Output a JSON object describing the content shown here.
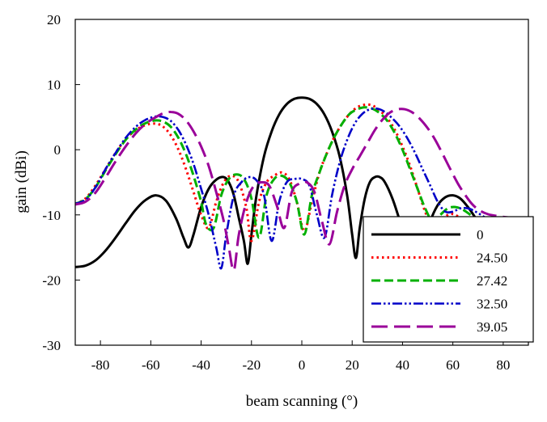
{
  "chart_data": {
    "type": "line",
    "title": "",
    "xlabel": "beam scanning (°)",
    "ylabel": "gain (dBi)",
    "xlim": [
      -90,
      90
    ],
    "ylim": [
      -30,
      20
    ],
    "xticks": [
      -80,
      -60,
      -40,
      -20,
      0,
      20,
      40,
      60,
      80
    ],
    "yticks": [
      -30,
      -20,
      -10,
      0,
      10,
      20
    ],
    "grid": false,
    "legend_position": "bottom-right",
    "series": [
      {
        "name": "0",
        "color": "#000000",
        "style": "solid",
        "x": [
          -90,
          -86,
          -82,
          -78,
          -74,
          -70,
          -66,
          -62,
          -58,
          -54,
          -50,
          -47,
          -45,
          -43,
          -40,
          -37,
          -34,
          -31,
          -29,
          -27,
          -25,
          -23,
          -21.5,
          -20,
          -18,
          -15,
          -12,
          -9,
          -6,
          -3,
          0,
          3,
          6,
          9,
          12,
          15,
          18,
          20,
          21.5,
          23,
          25,
          27,
          29,
          31,
          33,
          36,
          39,
          42,
          45,
          48,
          51,
          54,
          57,
          60,
          63,
          66,
          69,
          72,
          75
        ],
        "y": [
          -18.0,
          -17.8,
          -17.0,
          -15.5,
          -13.5,
          -11.3,
          -9.2,
          -7.7,
          -7.0,
          -7.8,
          -10.5,
          -13.5,
          -15.0,
          -13.0,
          -8.8,
          -6.0,
          -4.6,
          -4.2,
          -5.0,
          -7.0,
          -10.5,
          -14.0,
          -17.5,
          -13.0,
          -7.0,
          -1.0,
          2.8,
          5.4,
          7.0,
          7.8,
          8.0,
          7.8,
          7.0,
          5.4,
          2.8,
          -1.0,
          -7.0,
          -13.0,
          -16.6,
          -12.0,
          -7.5,
          -5.0,
          -4.2,
          -4.2,
          -5.0,
          -7.5,
          -11.0,
          -15.0,
          -17.5,
          -15.0,
          -11.0,
          -8.5,
          -7.3,
          -7.0,
          -7.5,
          -8.8,
          -10.5,
          -12.5,
          -14.5
        ]
      },
      {
        "name": "24.50",
        "color": "#ff0000",
        "style": "dotted",
        "x": [
          -90,
          -86,
          -82,
          -78,
          -74,
          -70,
          -66,
          -62,
          -58,
          -55,
          -52,
          -49,
          -46,
          -43,
          -40,
          -37,
          -34,
          -31,
          -28,
          -25,
          -22,
          -20,
          -17,
          -14,
          -11,
          -8,
          -5,
          -2,
          1,
          4,
          7,
          10,
          13,
          16,
          19,
          22,
          25,
          28,
          31,
          34,
          37,
          40,
          43,
          46,
          49,
          52,
          55,
          58,
          61,
          64,
          67,
          70,
          73,
          76,
          80,
          84,
          88,
          90
        ],
        "y": [
          -8.3,
          -7.5,
          -5.5,
          -3.0,
          -0.5,
          1.6,
          3.0,
          3.8,
          4.0,
          3.5,
          2.2,
          0.0,
          -3.0,
          -6.5,
          -10.0,
          -12.0,
          -8.0,
          -5.0,
          -4.0,
          -5.0,
          -9.0,
          -14.0,
          -8.0,
          -5.0,
          -4.0,
          -3.5,
          -4.5,
          -8.0,
          -12.5,
          -8.0,
          -3.5,
          -0.5,
          2.0,
          4.0,
          5.5,
          6.5,
          6.9,
          6.8,
          6.0,
          4.8,
          3.0,
          0.5,
          -2.5,
          -6.0,
          -9.5,
          -12.0,
          -11.5,
          -10.0,
          -10.0,
          -11.0,
          -12.0,
          -13.0,
          -13.5,
          -14.0,
          -14.5,
          -15.0,
          -15.5,
          -15.5
        ]
      },
      {
        "name": "27.42",
        "color": "#00b000",
        "style": "dashed",
        "x": [
          -90,
          -86,
          -82,
          -78,
          -74,
          -70,
          -66,
          -62,
          -58,
          -55,
          -52,
          -49,
          -46,
          -43,
          -40,
          -38,
          -35,
          -32,
          -29,
          -26,
          -23,
          -20,
          -17,
          -14,
          -11,
          -8,
          -5,
          -2,
          1,
          4,
          7,
          10,
          13,
          16,
          19,
          22,
          25,
          28,
          31,
          34,
          37,
          40,
          43,
          46,
          49,
          52,
          55,
          58,
          61,
          64,
          67,
          70,
          73,
          76,
          80,
          84,
          88,
          90
        ],
        "y": [
          -8.3,
          -7.6,
          -5.8,
          -3.2,
          -0.7,
          1.5,
          3.1,
          4.1,
          4.5,
          4.3,
          3.5,
          1.8,
          -0.7,
          -4.0,
          -8.0,
          -11.5,
          -12.0,
          -7.0,
          -4.5,
          -3.8,
          -4.5,
          -7.5,
          -13.5,
          -7.0,
          -4.5,
          -4.0,
          -5.0,
          -8.0,
          -13.0,
          -7.0,
          -3.5,
          -0.5,
          2.0,
          4.0,
          5.5,
          6.2,
          6.5,
          6.3,
          5.6,
          4.4,
          2.5,
          0.0,
          -3.0,
          -6.0,
          -9.0,
          -11.0,
          -10.0,
          -9.0,
          -8.8,
          -9.2,
          -10.0,
          -11.0,
          -12.0,
          -12.5,
          -13.0,
          -13.5,
          -14.0,
          -14.0
        ]
      },
      {
        "name": "32.50",
        "color": "#0000c8",
        "style": "dashdotdot",
        "x": [
          -90,
          -86,
          -82,
          -78,
          -74,
          -70,
          -66,
          -62,
          -58,
          -55,
          -52,
          -49,
          -46,
          -43,
          -40,
          -37,
          -34,
          -32,
          -30,
          -27,
          -24,
          -21,
          -18,
          -15,
          -12,
          -9,
          -6,
          -3,
          0,
          3,
          6,
          9,
          12,
          15,
          18,
          21,
          24,
          27,
          30,
          33,
          36,
          39,
          42,
          45,
          48,
          51,
          54,
          57,
          60,
          63,
          66,
          69,
          72,
          75,
          78,
          82,
          86,
          90
        ],
        "y": [
          -8.3,
          -7.7,
          -5.8,
          -3.0,
          -0.5,
          1.8,
          3.5,
          4.6,
          5.1,
          5.0,
          4.4,
          3.0,
          0.8,
          -2.2,
          -6.0,
          -10.0,
          -15.0,
          -18.2,
          -13.0,
          -7.0,
          -5.0,
          -4.2,
          -4.7,
          -7.0,
          -14.0,
          -8.0,
          -5.0,
          -4.5,
          -4.5,
          -5.5,
          -10.0,
          -13.5,
          -7.0,
          -2.0,
          1.5,
          4.0,
          5.5,
          6.2,
          6.3,
          5.8,
          4.8,
          3.5,
          1.7,
          -0.5,
          -3.0,
          -5.5,
          -8.0,
          -9.5,
          -9.5,
          -9.0,
          -9.0,
          -9.5,
          -10.2,
          -11.0,
          -11.5,
          -12.0,
          -12.5,
          -13.0
        ]
      },
      {
        "name": "39.05",
        "color": "#9a0099",
        "style": "longdash",
        "x": [
          -90,
          -86,
          -82,
          -78,
          -74,
          -70,
          -66,
          -62,
          -58,
          -55,
          -52,
          -49,
          -46,
          -43,
          -40,
          -37,
          -34,
          -31,
          -29,
          -27,
          -25,
          -22,
          -19,
          -16,
          -13,
          -10,
          -7,
          -4,
          -1,
          2,
          5,
          8,
          11,
          14,
          17,
          20,
          23,
          26,
          29,
          32,
          35,
          38,
          41,
          44,
          47,
          50,
          53,
          56,
          59,
          62,
          65,
          68,
          71,
          74,
          78,
          82,
          86,
          90
        ],
        "y": [
          -8.4,
          -8.0,
          -6.6,
          -4.3,
          -1.8,
          0.5,
          2.5,
          4.0,
          5.0,
          5.6,
          5.8,
          5.5,
          4.5,
          2.8,
          0.5,
          -2.5,
          -6.5,
          -11.0,
          -15.0,
          -18.5,
          -13.0,
          -8.0,
          -5.5,
          -5.0,
          -5.5,
          -8.5,
          -12.0,
          -6.5,
          -5.2,
          -5.0,
          -6.5,
          -11.0,
          -14.5,
          -9.5,
          -5.5,
          -3.0,
          -1.0,
          1.0,
          3.0,
          4.6,
          5.7,
          6.2,
          6.2,
          5.7,
          4.7,
          3.3,
          1.5,
          -0.7,
          -3.0,
          -5.2,
          -7.0,
          -8.5,
          -9.4,
          -9.9,
          -10.2,
          -10.4,
          -10.5,
          -10.5
        ]
      }
    ]
  }
}
